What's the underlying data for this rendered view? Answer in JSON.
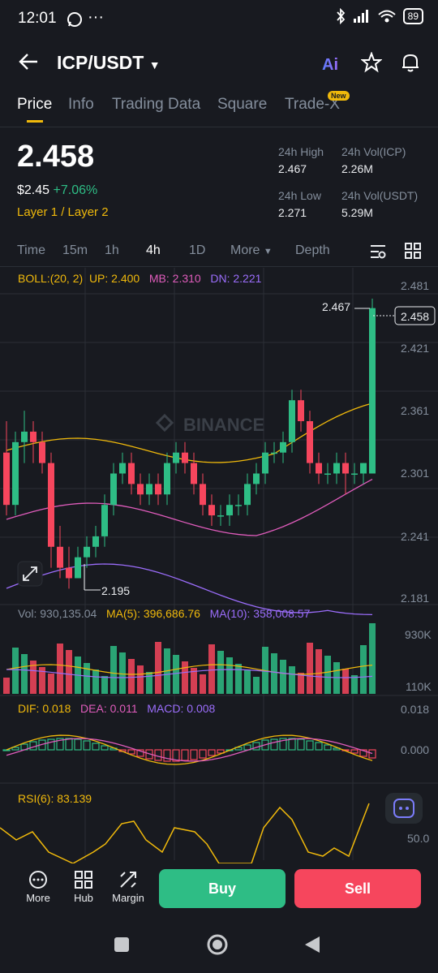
{
  "status_bar": {
    "time": "12:01",
    "battery": "89"
  },
  "header": {
    "pair": "ICP/USDT"
  },
  "tabs": [
    {
      "label": "Price",
      "active": true
    },
    {
      "label": "Info"
    },
    {
      "label": "Trading Data"
    },
    {
      "label": "Square"
    },
    {
      "label": "Trade-X",
      "badge": "New"
    }
  ],
  "ticker": {
    "last_price": "2.458",
    "usd_price": "$2.45",
    "change": "+7.06%",
    "tags": "Layer 1 / Layer 2",
    "high_label": "24h High",
    "high": "2.467",
    "vol_icp_label": "24h Vol(ICP)",
    "vol_icp": "2.26M",
    "low_label": "24h Low",
    "low": "2.271",
    "vol_usdt_label": "24h Vol(USDT)",
    "vol_usdt": "5.29M"
  },
  "intervals": [
    {
      "label": "Time"
    },
    {
      "label": "15m"
    },
    {
      "label": "1h"
    },
    {
      "label": "4h",
      "active": true
    },
    {
      "label": "1D"
    },
    {
      "label": "More"
    },
    {
      "label": "Depth"
    }
  ],
  "indicators": {
    "boll": "BOLL:(20, 2)",
    "boll_up": "UP: 2.400",
    "boll_mb": "MB: 2.310",
    "boll_dn": "DN: 2.221",
    "vol": "Vol: 930,135.04",
    "ma5": "MA(5): 396,686.76",
    "ma10": "MA(10): 358,008.57",
    "dif": "DIF: 0.018",
    "dea": "DEA: 0.011",
    "macd": "MACD: 0.008",
    "rsi": "RSI(6): 83.139"
  },
  "chart_data": {
    "type": "candlestick",
    "price_axis": [
      "2.481",
      "2.421",
      "2.361",
      "2.301",
      "2.241",
      "2.181"
    ],
    "price_range": [
      2.181,
      2.481
    ],
    "high_marker": "2.467",
    "low_marker": "2.195",
    "last_price_tag": "2.458",
    "watermark": "BINANCE",
    "candles": [
      [
        2.32,
        2.35,
        2.26,
        2.27
      ],
      [
        2.27,
        2.34,
        2.26,
        2.33
      ],
      [
        2.33,
        2.36,
        2.31,
        2.34
      ],
      [
        2.34,
        2.35,
        2.31,
        2.33
      ],
      [
        2.33,
        2.34,
        2.3,
        2.31
      ],
      [
        2.31,
        2.32,
        2.21,
        2.23
      ],
      [
        2.23,
        2.25,
        2.2,
        2.21
      ],
      [
        2.21,
        2.23,
        2.19,
        2.2
      ],
      [
        2.2,
        2.23,
        2.2,
        2.22
      ],
      [
        2.22,
        2.24,
        2.21,
        2.23
      ],
      [
        2.23,
        2.25,
        2.22,
        2.24
      ],
      [
        2.24,
        2.28,
        2.23,
        2.27
      ],
      [
        2.27,
        2.31,
        2.26,
        2.3
      ],
      [
        2.3,
        2.32,
        2.29,
        2.31
      ],
      [
        2.31,
        2.32,
        2.28,
        2.29
      ],
      [
        2.29,
        2.3,
        2.27,
        2.28
      ],
      [
        2.28,
        2.3,
        2.27,
        2.29
      ],
      [
        2.29,
        2.3,
        2.27,
        2.28
      ],
      [
        2.28,
        2.32,
        2.27,
        2.31
      ],
      [
        2.31,
        2.33,
        2.3,
        2.32
      ],
      [
        2.32,
        2.33,
        2.3,
        2.31
      ],
      [
        2.31,
        2.32,
        2.28,
        2.29
      ],
      [
        2.29,
        2.3,
        2.26,
        2.27
      ],
      [
        2.27,
        2.28,
        2.25,
        2.26
      ],
      [
        2.26,
        2.27,
        2.25,
        2.26
      ],
      [
        2.26,
        2.28,
        2.25,
        2.27
      ],
      [
        2.27,
        2.28,
        2.26,
        2.27
      ],
      [
        2.27,
        2.3,
        2.26,
        2.29
      ],
      [
        2.29,
        2.31,
        2.28,
        2.3
      ],
      [
        2.3,
        2.33,
        2.29,
        2.32
      ],
      [
        2.32,
        2.33,
        2.31,
        2.32
      ],
      [
        2.32,
        2.34,
        2.31,
        2.33
      ],
      [
        2.33,
        2.38,
        2.32,
        2.37
      ],
      [
        2.37,
        2.38,
        2.34,
        2.35
      ],
      [
        2.35,
        2.36,
        2.3,
        2.31
      ],
      [
        2.31,
        2.32,
        2.29,
        2.3
      ],
      [
        2.3,
        2.31,
        2.29,
        2.3
      ],
      [
        2.3,
        2.32,
        2.29,
        2.31
      ],
      [
        2.31,
        2.32,
        2.28,
        2.3
      ],
      [
        2.3,
        2.31,
        2.29,
        2.3
      ],
      [
        2.3,
        2.31,
        2.29,
        2.31
      ],
      [
        2.3,
        2.467,
        2.3,
        2.458
      ]
    ],
    "volume_axis": [
      "930K",
      "110K"
    ],
    "macd_axis": [
      "0.018",
      "0.000"
    ],
    "rsi_axis": [
      "50.0"
    ]
  },
  "bottom_bar": {
    "more": "More",
    "hub": "Hub",
    "margin": "Margin",
    "buy": "Buy",
    "sell": "Sell"
  },
  "colors": {
    "up": "#2ebd85",
    "down": "#f6465d",
    "accent": "#f0b90b",
    "bg": "#181a20"
  }
}
